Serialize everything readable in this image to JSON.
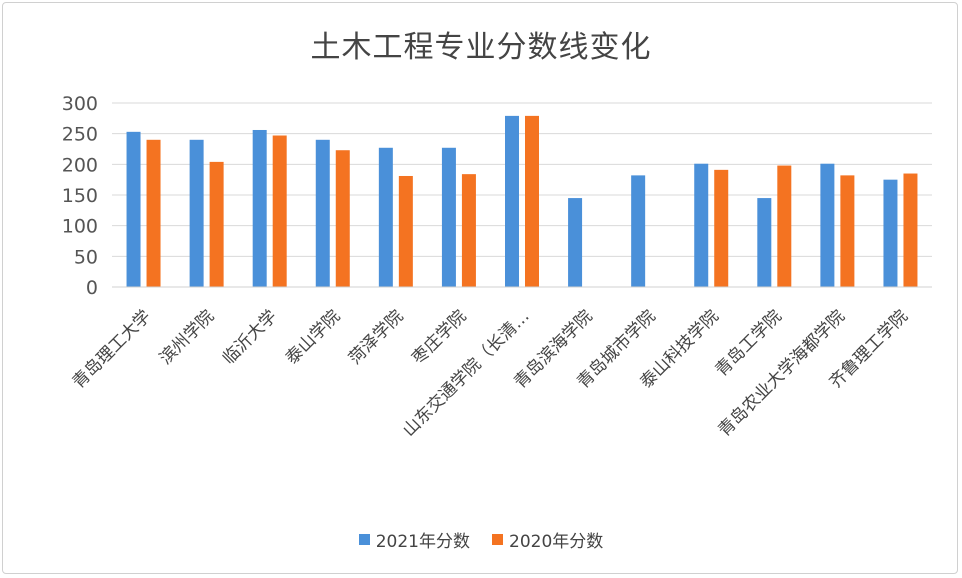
{
  "chart_data": {
    "type": "bar",
    "title": "土木工程专业分数线变化",
    "categories": [
      "青岛理工大学",
      "滨州学院",
      "临沂大学",
      "泰山学院",
      "菏泽学院",
      "枣庄学院",
      "山东交通学院（长清…",
      "青岛滨海学院",
      "青岛城市学院",
      "泰山科技学院",
      "青岛工学院",
      "青岛农业大学海都学院",
      "齐鲁理工学院"
    ],
    "series": [
      {
        "name": "2021年分数",
        "color": "#4a90d9",
        "values": [
          253,
          240,
          256,
          240,
          227,
          227,
          279,
          145,
          182,
          201,
          145,
          201,
          175
        ]
      },
      {
        "name": "2020年分数",
        "color": "#f47321",
        "values": [
          240,
          204,
          247,
          223,
          181,
          184,
          279,
          null,
          null,
          191,
          198,
          182,
          185
        ]
      }
    ],
    "ylim": [
      0,
      300
    ],
    "yticks": [
      "0",
      "50",
      "100",
      "150",
      "200",
      "250",
      "300"
    ],
    "grid": true,
    "legend": "bottom",
    "xlabel": "",
    "ylabel": ""
  }
}
